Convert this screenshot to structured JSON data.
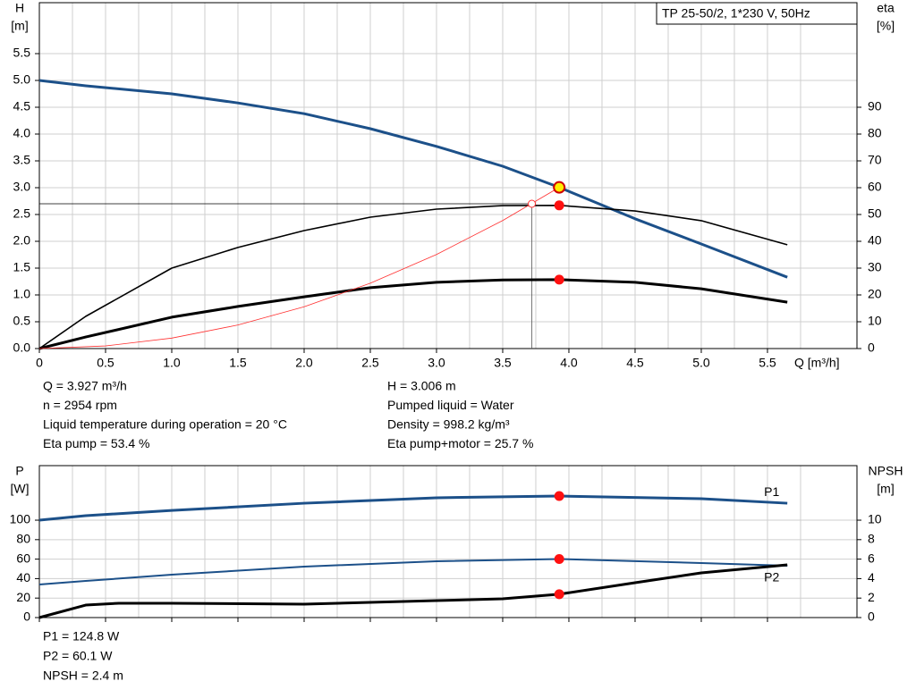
{
  "chart_data": [
    {
      "type": "line",
      "title": "TP 25-50/2, 1*230 V, 50Hz",
      "y_label": "H",
      "y_unit": "[m]",
      "y2_label": "eta",
      "y2_unit": "[%]",
      "x_label": "Q [m³/h]",
      "xlim": [
        0,
        6.176
      ],
      "ylim": [
        0,
        6.45
      ],
      "y2lim": [
        0,
        129
      ],
      "xticks": [
        0,
        0.5,
        {
          "value": 1,
          "label": "1.0"
        },
        1.5,
        {
          "value": 2,
          "label": "2.0"
        },
        2.5,
        {
          "value": 3,
          "label": "3.0"
        },
        3.5,
        {
          "value": 4,
          "label": "4.0"
        },
        4.5,
        {
          "value": 5,
          "label": "5.0"
        },
        5.5
      ],
      "yticks": [
        {
          "value": 0,
          "label": "0.0"
        },
        0.5,
        {
          "value": 1,
          "label": "1.0"
        },
        1.5,
        {
          "value": 2,
          "label": "2.0"
        },
        2.5,
        {
          "value": 3,
          "label": "3.0"
        },
        3.5,
        {
          "value": 4,
          "label": "4.0"
        },
        4.5,
        {
          "value": 5,
          "label": "5.0"
        },
        5.5
      ],
      "y2ticks": [
        0,
        10,
        20,
        30,
        40,
        50,
        60,
        70,
        80,
        90
      ],
      "grid": true,
      "series": [
        {
          "color": "#1c5089",
          "width": 3,
          "axis": "y",
          "x": [
            0,
            0.35,
            1,
            1.5,
            2,
            2.5,
            3,
            3.5,
            3.927,
            4.5,
            5,
            5.65
          ],
          "values": [
            5.0,
            4.9,
            4.75,
            4.58,
            4.38,
            4.1,
            3.77,
            3.4,
            3.006,
            2.42,
            1.95,
            1.33
          ]
        },
        {
          "color": "#000000",
          "width": 1.6,
          "axis": "y2",
          "x": [
            0,
            0.35,
            1,
            1.5,
            2,
            2.5,
            3,
            3.5,
            3.927,
            4.5,
            5,
            5.65
          ],
          "values": [
            0,
            12,
            30,
            37.7,
            44,
            49,
            52,
            53.3,
            53.4,
            51.3,
            47.7,
            38.7
          ],
          "highlight_index": 8
        },
        {
          "color": "#000000",
          "width": 3,
          "axis": "y2",
          "x": [
            0,
            0.35,
            1,
            1.5,
            2,
            2.5,
            3,
            3.5,
            3.927,
            4.5,
            5,
            5.65
          ],
          "values": [
            0,
            4.3,
            11.7,
            15.7,
            19.3,
            22.7,
            24.7,
            25.6,
            25.7,
            24.7,
            22.3,
            17.3
          ],
          "highlight_index": 8
        },
        {
          "color": "#ff3030",
          "width": 0.8,
          "axis": "y",
          "x": [
            0,
            0.5,
            1,
            1.5,
            2,
            2.5,
            3,
            3.5,
            3.927
          ],
          "values": [
            0,
            0.049,
            0.195,
            0.439,
            0.78,
            1.218,
            1.754,
            2.388,
            3.006
          ]
        }
      ],
      "duty_point": {
        "x": 3.927,
        "y": 3.006,
        "color": "#ffee00"
      },
      "reference_point": {
        "x": 3.72,
        "y": 2.7
      }
    },
    {
      "type": "line",
      "y_label": "P",
      "y_unit": "[W]",
      "y2_label": "NPSH",
      "y2_unit": "[m]",
      "xlim": [
        0,
        6.176
      ],
      "ylim": [
        0,
        156
      ],
      "y2lim": [
        0,
        15.6
      ],
      "xticks": [
        0,
        0.5,
        1,
        1.5,
        2,
        2.5,
        3,
        3.5,
        4,
        4.5,
        5,
        5.5
      ],
      "show_xtick_labels": false,
      "yticks": [
        0,
        20,
        40,
        60,
        80,
        100
      ],
      "y2ticks": [
        0,
        2,
        4,
        6,
        8,
        10
      ],
      "grid": true,
      "series": [
        {
          "name": "P1",
          "color": "#1c5089",
          "width": 3,
          "axis": "y",
          "x": [
            0,
            0.35,
            1,
            2,
            3,
            3.927,
            5,
            5.65
          ],
          "values": [
            100,
            104.6,
            110,
            117.4,
            123,
            124.8,
            122,
            117.4
          ],
          "highlight_index": 5
        },
        {
          "name": "P2",
          "color": "#1c5089",
          "width": 2,
          "axis": "y",
          "x": [
            0,
            0.35,
            1,
            2,
            3,
            3.927,
            5,
            5.65
          ],
          "values": [
            34,
            37.6,
            44,
            52.3,
            57.8,
            60.1,
            56,
            53.2
          ],
          "highlight_index": 5
        },
        {
          "color": "#000000",
          "width": 3,
          "axis": "y2",
          "x": [
            0,
            0.35,
            0.6,
            1,
            2,
            3,
            3.5,
            3.927,
            4.5,
            5,
            5.65
          ],
          "values": [
            0,
            1.28,
            1.47,
            1.47,
            1.38,
            1.74,
            1.93,
            2.4,
            3.58,
            4.59,
            5.41
          ],
          "highlight_index": 7
        }
      ]
    }
  ],
  "info_top": {
    "left": [
      "Q = 3.927 m³/h",
      "n = 2954 rpm",
      "Liquid temperature during operation = 20 °C",
      "Eta pump = 53.4 %"
    ],
    "right": [
      "H = 3.006 m",
      "Pumped liquid = Water",
      "Density = 998.2 kg/m³",
      "Eta pump+motor = 25.7 %"
    ]
  },
  "info_bottom": [
    "P1 = 124.8 W",
    "P2 = 60.1 W",
    "NPSH = 2.4 m"
  ]
}
